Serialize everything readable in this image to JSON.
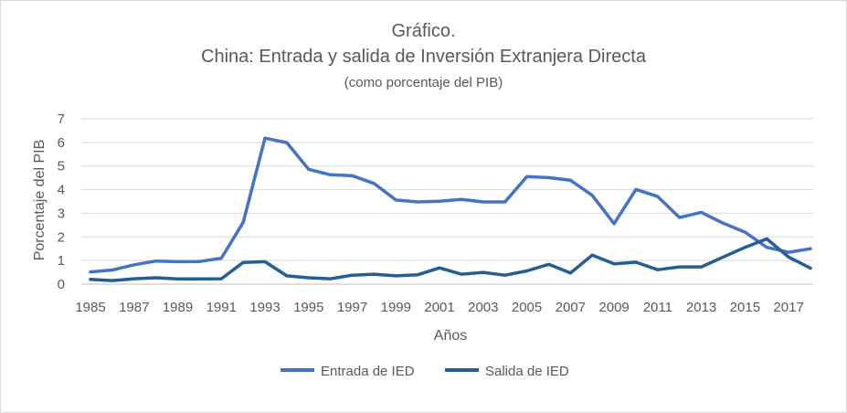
{
  "chart_data": {
    "type": "line",
    "title": "Gráfico.",
    "subtitle": "China: Entrada y salida de Inversión Extranjera Directa",
    "subtitle2": "(como porcentaje del PIB)",
    "xlabel": "Años",
    "ylabel": "Porcentaje del PIB",
    "ylim": [
      0,
      7
    ],
    "yticks": [
      "0",
      "1",
      "2",
      "3",
      "4",
      "5",
      "6",
      "7"
    ],
    "x": [
      1985,
      1986,
      1987,
      1988,
      1989,
      1990,
      1991,
      1992,
      1993,
      1994,
      1995,
      1996,
      1997,
      1998,
      1999,
      2000,
      2001,
      2002,
      2003,
      2004,
      2005,
      2006,
      2007,
      2008,
      2009,
      2010,
      2011,
      2012,
      2013,
      2014,
      2015,
      2016,
      2017,
      2018
    ],
    "xtick_labels": [
      "1985",
      "1987",
      "1989",
      "1991",
      "1993",
      "1995",
      "1997",
      "1999",
      "2001",
      "2003",
      "2005",
      "2007",
      "2009",
      "2011",
      "2013",
      "2015",
      "2017"
    ],
    "series": [
      {
        "name": "Entrada de IED",
        "color": "#4472c4",
        "values": [
          0.52,
          0.6,
          0.82,
          0.98,
          0.95,
          0.96,
          1.1,
          2.62,
          6.18,
          5.99,
          4.86,
          4.63,
          4.59,
          4.26,
          3.56,
          3.48,
          3.51,
          3.59,
          3.48,
          3.48,
          4.55,
          4.51,
          4.4,
          3.76,
          2.56,
          4.01,
          3.71,
          2.82,
          3.04,
          2.58,
          2.2,
          1.56,
          1.35,
          1.5
        ]
      },
      {
        "name": "Salida de IED",
        "color": "#255e91",
        "values": [
          0.2,
          0.15,
          0.23,
          0.27,
          0.22,
          0.22,
          0.23,
          0.92,
          0.95,
          0.35,
          0.27,
          0.23,
          0.38,
          0.42,
          0.35,
          0.4,
          0.69,
          0.42,
          0.5,
          0.38,
          0.56,
          0.84,
          0.47,
          1.23,
          0.86,
          0.93,
          0.61,
          0.73,
          0.73,
          1.15,
          1.56,
          1.92,
          1.15,
          0.68
        ]
      }
    ],
    "legend_position": "bottom"
  }
}
